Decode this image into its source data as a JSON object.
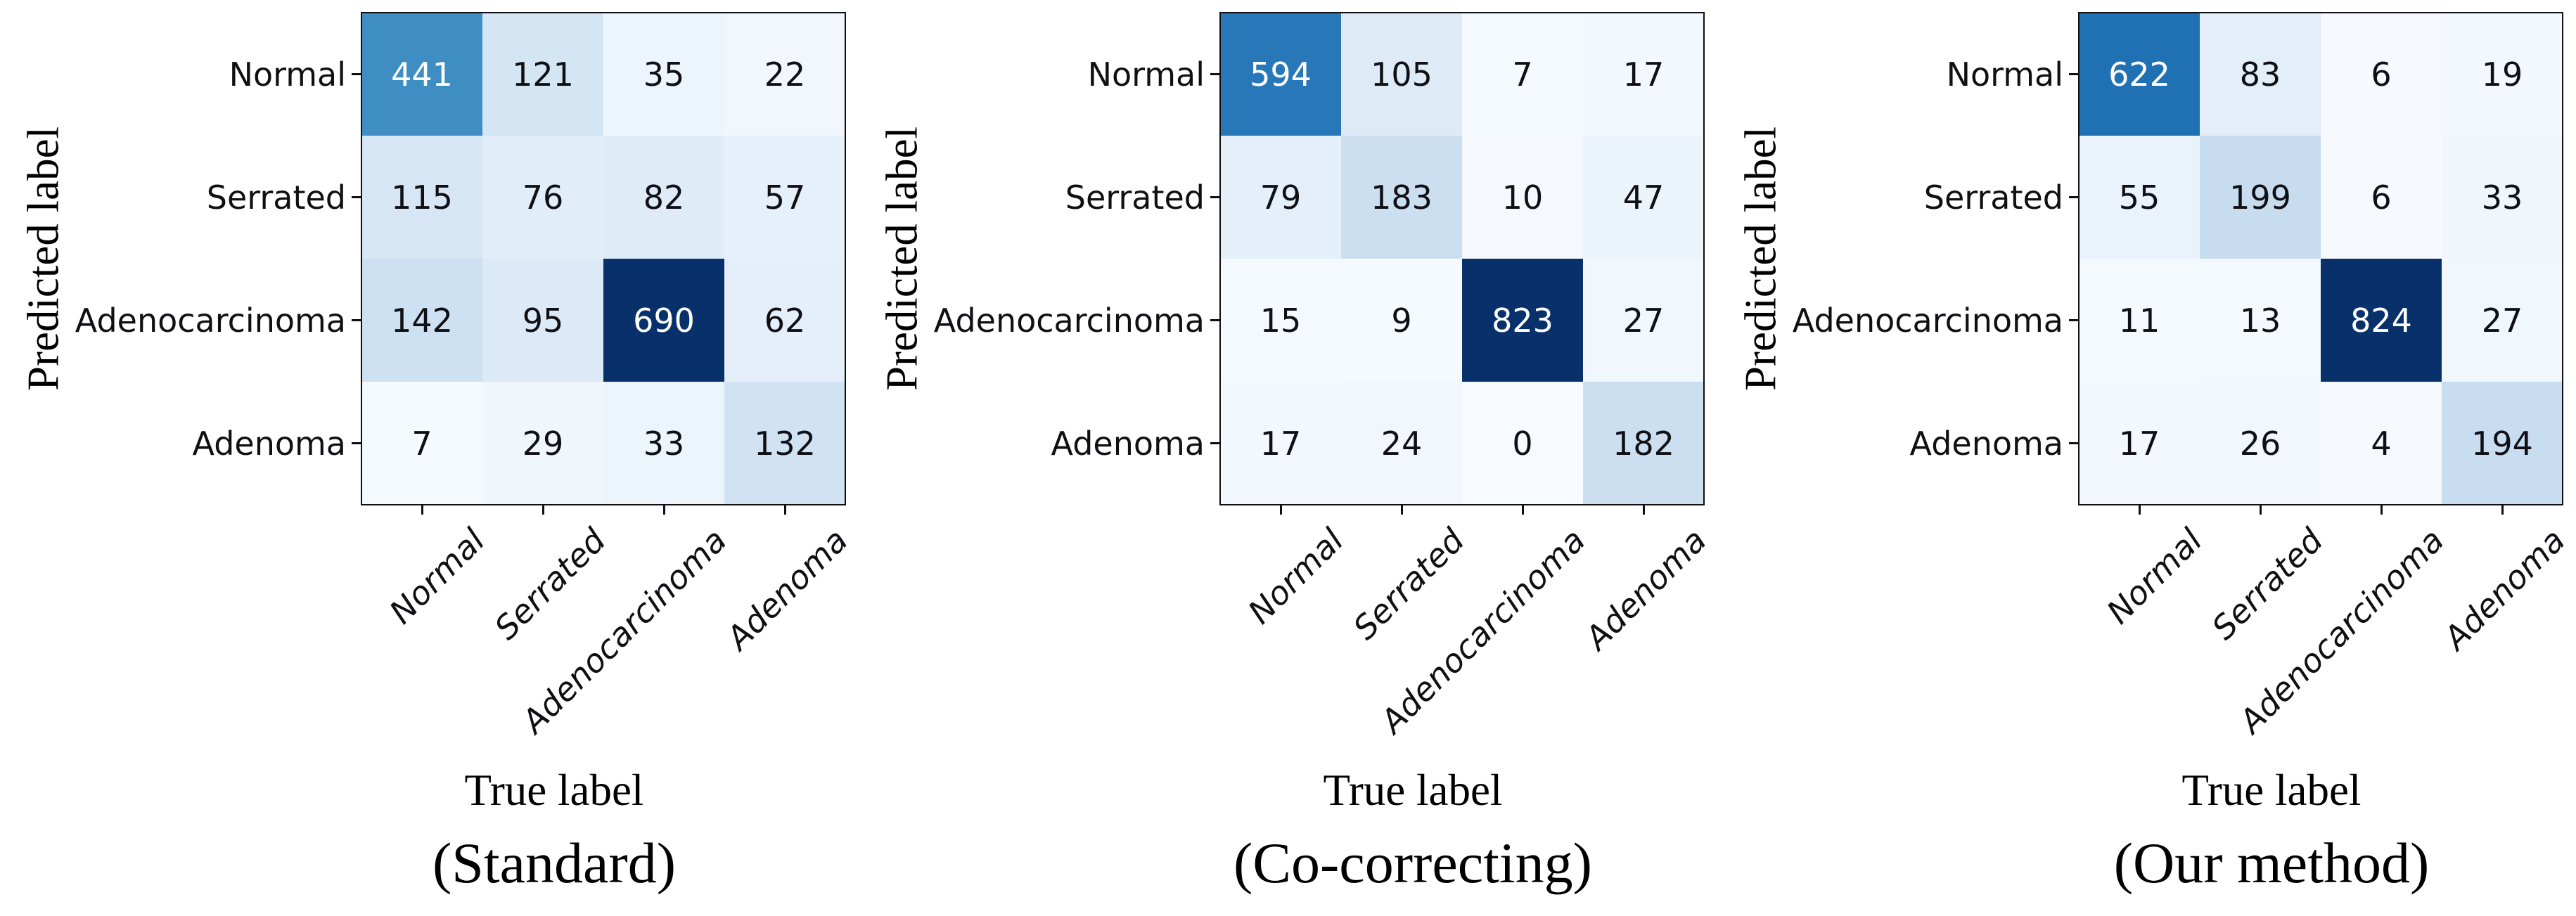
{
  "chart_data": [
    {
      "type": "heatmap",
      "title": "(Standard)",
      "xlabel": "True label",
      "ylabel": "Predicted label",
      "x_categories": [
        "Normal",
        "Serrated",
        "Adenocarcinoma",
        "Adenoma"
      ],
      "y_categories": [
        "Normal",
        "Serrated",
        "Adenocarcinoma",
        "Adenoma"
      ],
      "values": [
        [
          441,
          121,
          35,
          22
        ],
        [
          115,
          76,
          82,
          57
        ],
        [
          142,
          95,
          690,
          62
        ],
        [
          7,
          29,
          33,
          132
        ]
      ],
      "colormap": "Blues",
      "vmin": 0,
      "vmax": 690
    },
    {
      "type": "heatmap",
      "title": "(Co-correcting)",
      "xlabel": "True label",
      "ylabel": "Predicted label",
      "x_categories": [
        "Normal",
        "Serrated",
        "Adenocarcinoma",
        "Adenoma"
      ],
      "y_categories": [
        "Normal",
        "Serrated",
        "Adenocarcinoma",
        "Adenoma"
      ],
      "values": [
        [
          594,
          105,
          7,
          17
        ],
        [
          79,
          183,
          10,
          47
        ],
        [
          15,
          9,
          823,
          27
        ],
        [
          17,
          24,
          0,
          182
        ]
      ],
      "colormap": "Blues",
      "vmin": 0,
      "vmax": 823
    },
    {
      "type": "heatmap",
      "title": "(Our method)",
      "xlabel": "True label",
      "ylabel": "Predicted label",
      "x_categories": [
        "Normal",
        "Serrated",
        "Adenocarcinoma",
        "Adenoma"
      ],
      "y_categories": [
        "Normal",
        "Serrated",
        "Adenocarcinoma",
        "Adenoma"
      ],
      "values": [
        [
          622,
          83,
          6,
          19
        ],
        [
          55,
          199,
          6,
          33
        ],
        [
          11,
          13,
          824,
          27
        ],
        [
          17,
          26,
          4,
          194
        ]
      ],
      "colormap": "Blues",
      "vmin": 0,
      "vmax": 824
    }
  ],
  "colors": {
    "spine": "#0f0f14",
    "cell_text_dark": "#0f0f14",
    "cell_text_light": "#ffffff",
    "diag_max": "#08306b",
    "background": "#ffffff"
  }
}
